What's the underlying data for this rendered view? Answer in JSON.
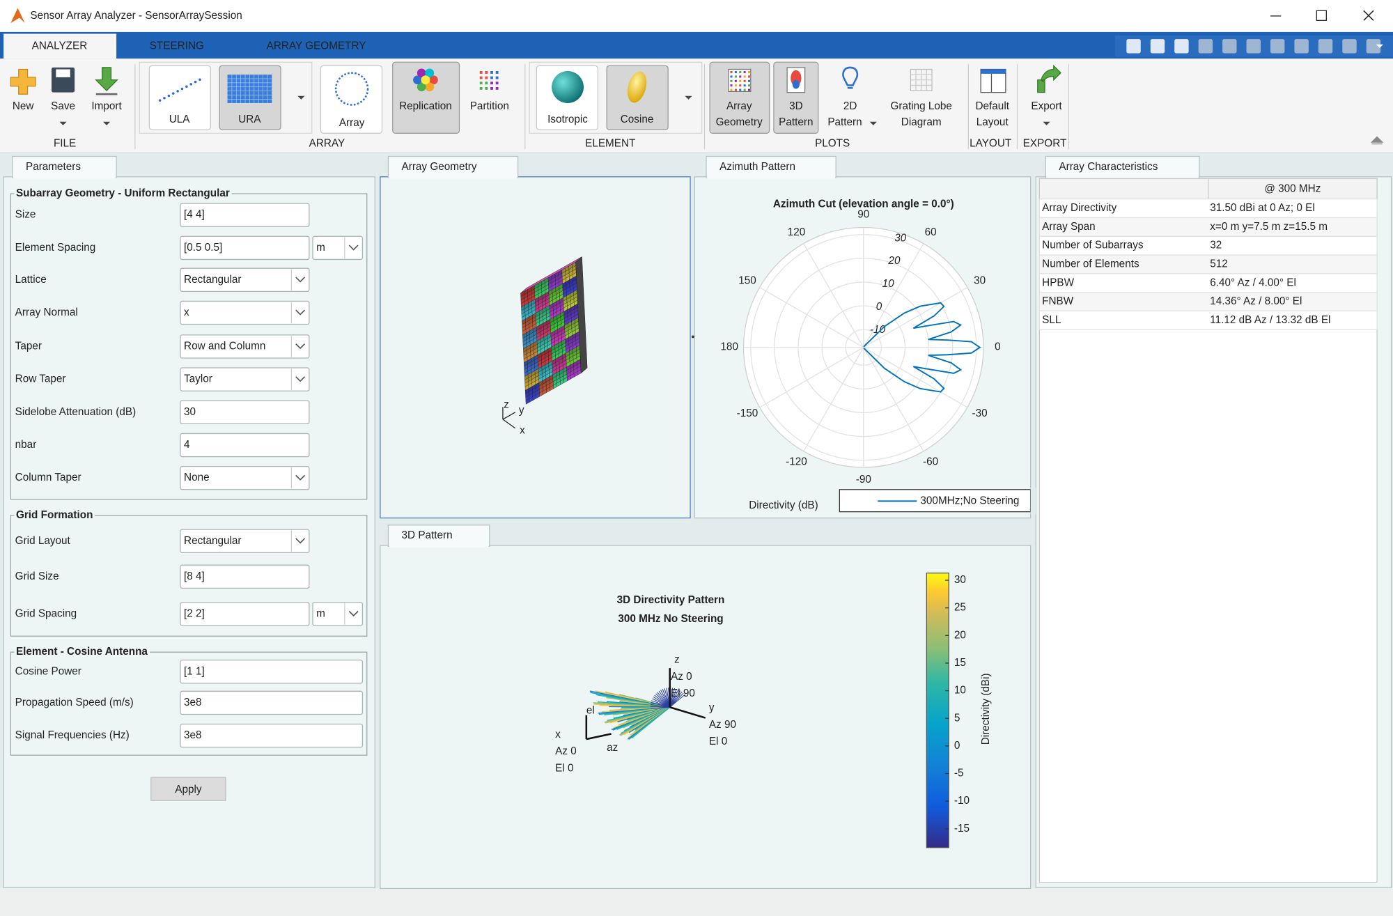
{
  "window": {
    "title": "Sensor Array Analyzer - SensorArraySession"
  },
  "tabs": [
    "ANALYZER",
    "STEERING",
    "ARRAY GEOMETRY"
  ],
  "toolstrip": {
    "sections": [
      {
        "label": "FILE",
        "buttons": [
          {
            "label": [
              "New"
            ]
          },
          {
            "label": [
              "Save"
            ]
          },
          {
            "label": [
              "Import"
            ]
          }
        ]
      },
      {
        "label": "ARRAY",
        "buttons": [
          {
            "label": [
              "ULA"
            ]
          },
          {
            "label": [
              "URA"
            ],
            "selected": true
          },
          {
            "label": [
              "Array"
            ]
          },
          {
            "label": [
              "Replication"
            ],
            "selected": true
          },
          {
            "label": [
              "Partition"
            ]
          }
        ]
      },
      {
        "label": "ELEMENT",
        "buttons": [
          {
            "label": [
              "Isotropic"
            ]
          },
          {
            "label": [
              "Cosine"
            ],
            "selected": true
          }
        ]
      },
      {
        "label": "PLOTS",
        "buttons": [
          {
            "label": [
              "Array",
              "Geometry"
            ],
            "selected": true
          },
          {
            "label": [
              "3D",
              "Pattern"
            ],
            "selected": true
          },
          {
            "label": [
              "2D",
              "Pattern"
            ]
          },
          {
            "label": [
              "Grating Lobe",
              "Diagram"
            ]
          }
        ]
      },
      {
        "label": "LAYOUT",
        "buttons": [
          {
            "label": [
              "Default",
              "Layout"
            ]
          }
        ]
      },
      {
        "label": "EXPORT",
        "buttons": [
          {
            "label": [
              "Export"
            ]
          }
        ]
      }
    ]
  },
  "parameters": {
    "tab": "Parameters",
    "groups": [
      {
        "title": "Subarray Geometry - Uniform Rectangular",
        "fields": [
          {
            "label": "Size",
            "value": "[4 4]"
          },
          {
            "label": "Element Spacing",
            "value": "[0.5 0.5]",
            "unit": "m"
          },
          {
            "label": "Lattice",
            "value": "Rectangular",
            "dropdown": true
          },
          {
            "label": "Array Normal",
            "value": "x",
            "dropdown": true
          },
          {
            "label": "Taper",
            "value": "Row and Column",
            "dropdown": true
          },
          {
            "label": "Row Taper",
            "value": "Taylor",
            "dropdown": true
          },
          {
            "label": "Sidelobe Attenuation (dB)",
            "value": "30"
          },
          {
            "label": "nbar",
            "value": "4"
          },
          {
            "label": "Column Taper",
            "value": "None",
            "dropdown": true
          }
        ]
      },
      {
        "title": "Grid Formation",
        "fields": [
          {
            "label": "Grid Layout",
            "value": "Rectangular",
            "dropdown": true
          },
          {
            "label": "Grid Size",
            "value": "[8 4]"
          },
          {
            "label": "Grid Spacing",
            "value": "[2 2]",
            "unit": "m"
          }
        ]
      },
      {
        "title": "Element - Cosine Antenna",
        "fields": [
          {
            "label": "Cosine Power",
            "value": "[1 1]"
          },
          {
            "label": "Propagation Speed (m/s)",
            "value": "3e8"
          },
          {
            "label": "Signal Frequencies (Hz)",
            "value": "3e8"
          }
        ]
      }
    ],
    "apply": "Apply"
  },
  "array_geometry": {
    "tab": "Array Geometry",
    "axes": [
      "z",
      "y",
      "x"
    ]
  },
  "azimuth_pattern": {
    "tab": "Azimuth Pattern"
  },
  "pattern_3d": {
    "tab": "3D Pattern"
  },
  "chart_data": [
    {
      "type": "polar",
      "title": "Azimuth Cut (elevation angle = 0.0°)",
      "rlim": [
        -17.5,
        33
      ],
      "rticks": [
        -10,
        0,
        10,
        20,
        30
      ],
      "thetaticks": [
        0,
        30,
        60,
        90,
        120,
        150,
        180,
        -150,
        -120,
        -90,
        -60,
        -30
      ],
      "rlabel": "Directivity (dB)",
      "legend": "bottom-right",
      "series": [
        {
          "name": "300MHz;No Steering",
          "color": "#0072bd",
          "theta": [
            -90,
            -60,
            -45,
            -40,
            -36,
            -30,
            -27,
            -24,
            -21,
            -19,
            -16,
            -13,
            -10,
            -7,
            -5,
            -3,
            0,
            3,
            5,
            7,
            10,
            13,
            16,
            19,
            21,
            24,
            27,
            30,
            36,
            40,
            45,
            60,
            90
          ],
          "values": [
            -17,
            -17,
            -5,
            5,
            12,
            20,
            20.5,
            15,
            5,
            10,
            22,
            24.5,
            20,
            10,
            18,
            28,
            31.5,
            28,
            18,
            10,
            20,
            24.5,
            22,
            10,
            5,
            15,
            20.5,
            20,
            12,
            5,
            -5,
            -17,
            -17
          ]
        }
      ]
    },
    {
      "type": "surface3d",
      "title": [
        "3D Directivity Pattern",
        "300 MHz No Steering"
      ],
      "clim": [
        -18.4,
        31.3
      ],
      "cticks": [
        30,
        25,
        20,
        15,
        10,
        5,
        0,
        -5,
        -10,
        -15
      ],
      "clabel": "Directivity (dBi)",
      "axis_labels": [
        {
          "axis": "z",
          "az": "Az 0",
          "el": "El 90"
        },
        {
          "axis": "y",
          "az": "Az 90",
          "el": "El 0"
        },
        {
          "axis": "x",
          "az": "Az 0",
          "el": "El 0"
        }
      ],
      "local_axes": [
        "el",
        "az"
      ]
    }
  ],
  "array_characteristics": {
    "tab": "Array Characteristics",
    "header": "@ 300 MHz",
    "rows": [
      [
        "Array Directivity",
        "31.50 dBi at 0 Az; 0 El"
      ],
      [
        "Array Span",
        "x=0 m y=7.5 m z=15.5 m"
      ],
      [
        "Number of Subarrays",
        "32"
      ],
      [
        "Number of Elements",
        "512"
      ],
      [
        "HPBW",
        "6.40° Az / 4.00° El"
      ],
      [
        "FNBW",
        "14.36° Az / 8.00° El"
      ],
      [
        "SLL",
        "11.12 dB Az / 13.32 dB El"
      ]
    ]
  }
}
